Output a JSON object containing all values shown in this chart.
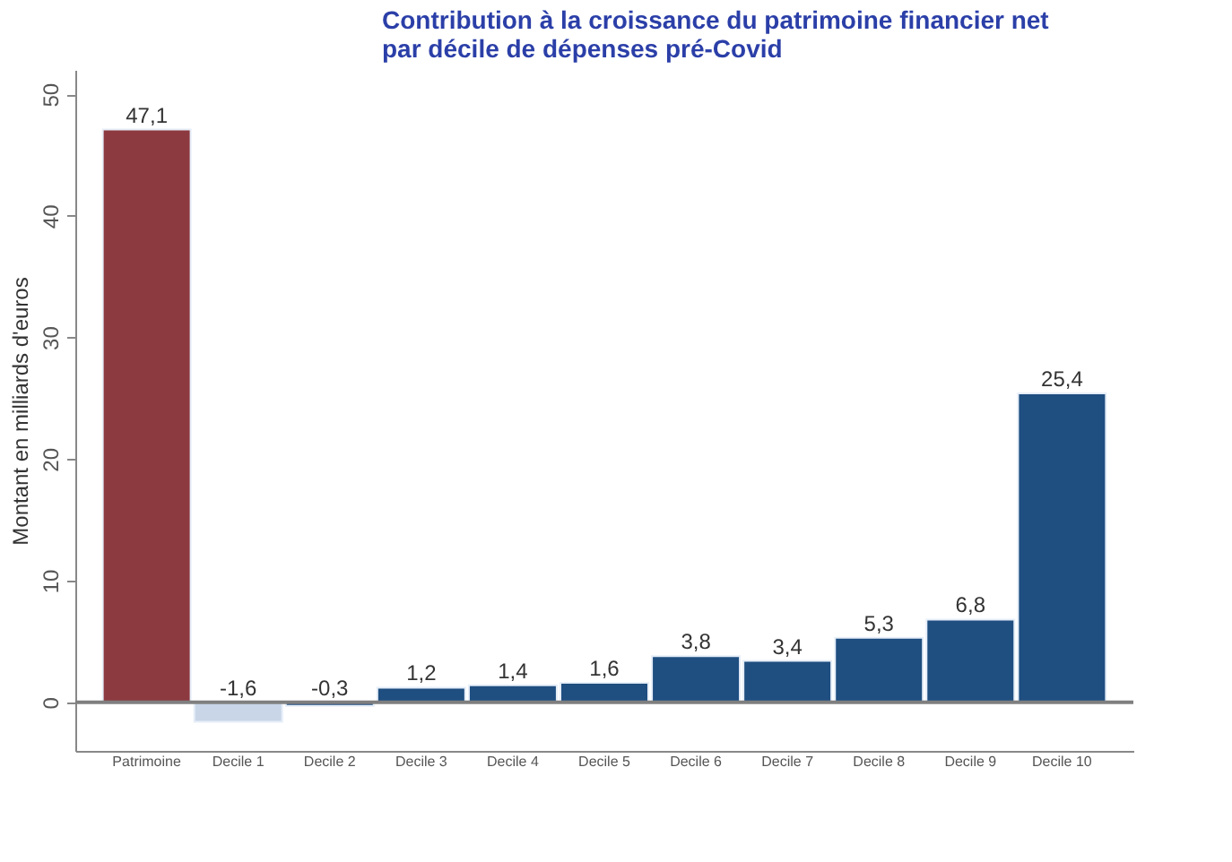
{
  "chart_data": {
    "type": "bar",
    "title": [
      "Contribution à la croissance du patrimoine financier net",
      "par décile de dépenses pré-Covid"
    ],
    "ylabel": "Montant en milliards d'euros",
    "categories": [
      "Patrimoine",
      "Decile 1",
      "Decile 2",
      "Decile 3",
      "Decile 4",
      "Decile 5",
      "Decile 6",
      "Decile 7",
      "Decile 8",
      "Decile 9",
      "Decile 10"
    ],
    "values": [
      47.1,
      -1.6,
      -0.3,
      1.2,
      1.4,
      1.6,
      3.8,
      3.4,
      5.3,
      6.8,
      25.4
    ],
    "value_labels": [
      "47,1",
      "-1,6",
      "-0,3",
      "1,2",
      "1,4",
      "1,6",
      "3,8",
      "3,4",
      "5,3",
      "6,8",
      "25,4"
    ],
    "colors": [
      "#8c3a40",
      "#c9d6e8",
      "#1f4e80",
      "#1f4e80",
      "#1f4e80",
      "#1f4e80",
      "#1f4e80",
      "#1f4e80",
      "#1f4e80",
      "#1f4e80",
      "#1f4e80"
    ],
    "ylim": [
      -4,
      52
    ],
    "yticks": [
      0,
      10,
      20,
      30,
      40,
      50
    ],
    "ref_lines": [
      {
        "axis": "y",
        "value": 0,
        "color": "#7f7f7f"
      }
    ],
    "grid": false
  }
}
